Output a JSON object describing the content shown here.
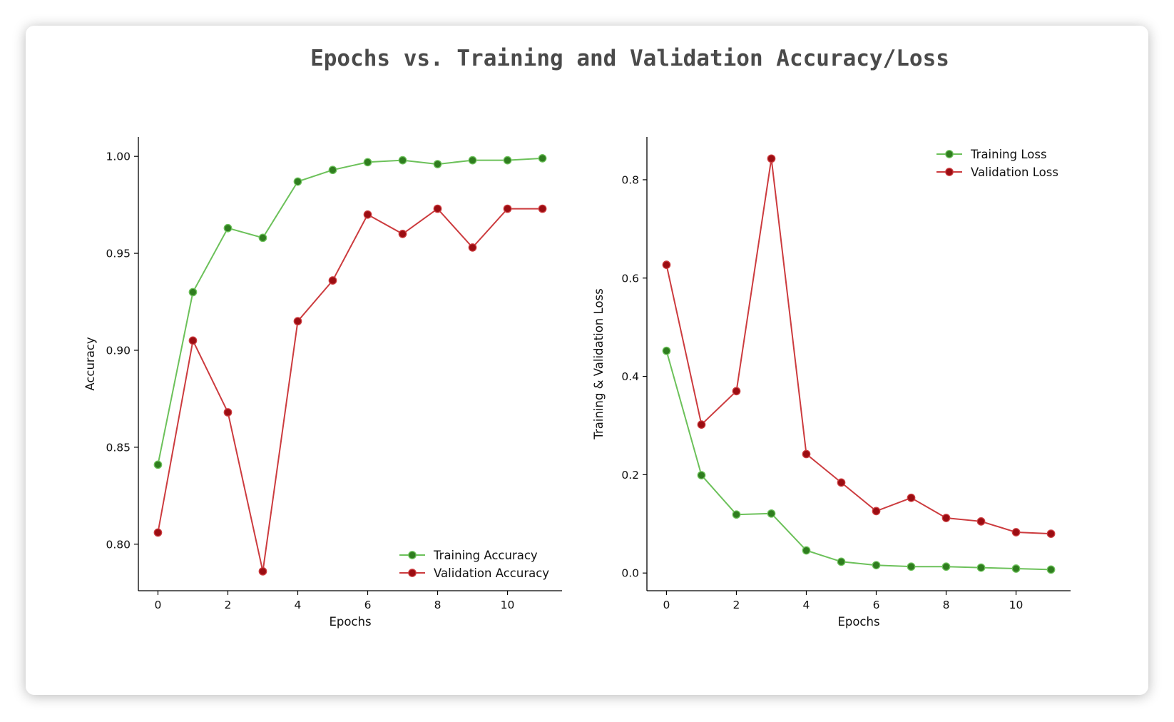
{
  "figure": {
    "title": "Epochs vs. Training and Validation Accuracy/Loss"
  },
  "chart_data": [
    {
      "type": "line",
      "xlabel": "Epochs",
      "ylabel": "Accuracy",
      "x": [
        0,
        1,
        2,
        3,
        4,
        5,
        6,
        7,
        8,
        9,
        10,
        11
      ],
      "xlim": [
        -0.56,
        11.56
      ],
      "ylim": [
        0.776,
        1.01
      ],
      "xticks": [
        0,
        2,
        4,
        6,
        8,
        10
      ],
      "xtick_labels": [
        "0",
        "2",
        "4",
        "6",
        "8",
        "10"
      ],
      "yticks": [
        0.8,
        0.85,
        0.9,
        0.95,
        1.0
      ],
      "ytick_labels": [
        "0.80",
        "0.85",
        "0.90",
        "0.95",
        "1.00"
      ],
      "grid": false,
      "legend_position": "lower-right",
      "series": [
        {
          "name": "Training Accuracy",
          "line_color": "#6cc15a",
          "marker_color": "#2f7d1f",
          "values": [
            0.841,
            0.93,
            0.963,
            0.958,
            0.987,
            0.993,
            0.997,
            0.998,
            0.996,
            0.998,
            0.998,
            0.999
          ]
        },
        {
          "name": "Validation Accuracy",
          "line_color": "#cc3b3e",
          "marker_color": "#9b0d12",
          "values": [
            0.806,
            0.905,
            0.868,
            0.786,
            0.915,
            0.936,
            0.97,
            0.96,
            0.973,
            0.953,
            0.973,
            0.973
          ]
        }
      ]
    },
    {
      "type": "line",
      "xlabel": "Epochs",
      "ylabel": "Training & Validation Loss",
      "x": [
        0,
        1,
        2,
        3,
        4,
        5,
        6,
        7,
        8,
        9,
        10,
        11
      ],
      "xlim": [
        -0.56,
        11.56
      ],
      "ylim": [
        -0.036,
        0.887
      ],
      "xticks": [
        0,
        2,
        4,
        6,
        8,
        10
      ],
      "xtick_labels": [
        "0",
        "2",
        "4",
        "6",
        "8",
        "10"
      ],
      "yticks": [
        0.0,
        0.2,
        0.4,
        0.6,
        0.8
      ],
      "ytick_labels": [
        "0.0",
        "0.2",
        "0.4",
        "0.6",
        "0.8"
      ],
      "grid": false,
      "legend_position": "upper-right",
      "series": [
        {
          "name": "Training Loss",
          "line_color": "#6cc15a",
          "marker_color": "#2f7d1f",
          "values": [
            0.452,
            0.199,
            0.119,
            0.121,
            0.046,
            0.023,
            0.016,
            0.013,
            0.013,
            0.011,
            0.009,
            0.007
          ]
        },
        {
          "name": "Validation Loss",
          "line_color": "#cc3b3e",
          "marker_color": "#9b0d12",
          "values": [
            0.627,
            0.302,
            0.37,
            0.843,
            0.242,
            0.184,
            0.126,
            0.153,
            0.112,
            0.105,
            0.083,
            0.08
          ]
        }
      ]
    }
  ]
}
